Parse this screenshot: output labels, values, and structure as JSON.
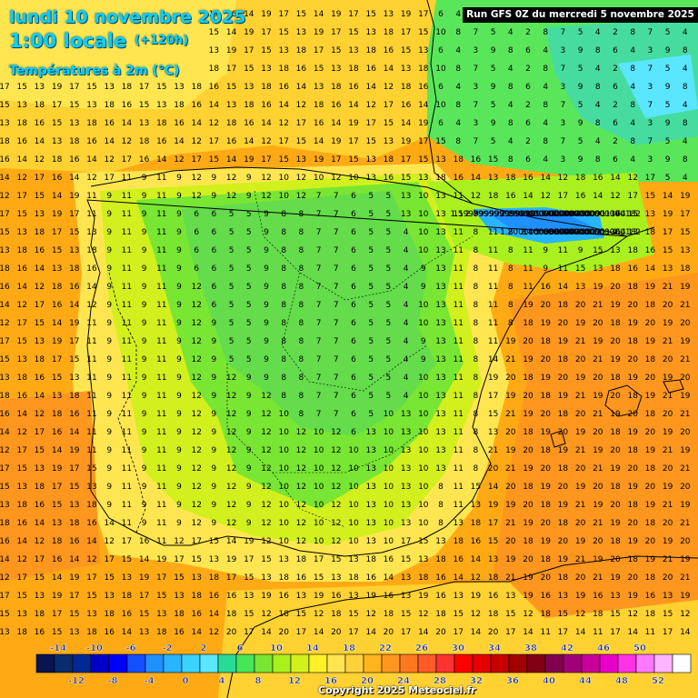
{
  "header": {
    "date_line": "lundi 10 novembre 2025",
    "time_line": "1:00 locale",
    "lead_time": "(+120h)",
    "variable": "Températures à 2m (°C)",
    "run_info": "Run GFS 0Z du mercredi 5 novembre 2025",
    "copyright": "Copyright 2025 Meteociel.fr"
  },
  "legend": {
    "top_labels": [
      "-14",
      "-10",
      "-6",
      "-2",
      "2",
      "6",
      "10",
      "14",
      "18",
      "22",
      "26",
      "30",
      "34",
      "38",
      "42",
      "46",
      "50"
    ],
    "bottom_labels": [
      "-12",
      "-8",
      "-4",
      "0",
      "4",
      "8",
      "12",
      "16",
      "20",
      "24",
      "28",
      "32",
      "36",
      "40",
      "44",
      "48",
      "52"
    ],
    "colors": [
      "#0a1450",
      "#0a2a6e",
      "#002896",
      "#0000c8",
      "#0000ff",
      "#1450ff",
      "#1e90ff",
      "#28b4ff",
      "#3cd2ff",
      "#5ae6ff",
      "#28dc96",
      "#46e65a",
      "#78e632",
      "#aaf01e",
      "#d2f01e",
      "#fff028",
      "#ffe650",
      "#ffd23c",
      "#ffb41e",
      "#ff961e",
      "#ff781e",
      "#ff5a28",
      "#ff3232",
      "#ff0000",
      "#e60000",
      "#c80000",
      "#a00000",
      "#820014",
      "#820050",
      "#a00078",
      "#c8009b",
      "#e600c8",
      "#ff32e6",
      "#ff78ff",
      "#ffb4ff",
      "#ffffff"
    ]
  },
  "colors": {
    "ocean_warm": "#ffaa14",
    "ocean_mild": "#ffd232",
    "land_cool": "#64dc4b",
    "land_cold": "#32d2ff",
    "title": "#00d2ff"
  }
}
